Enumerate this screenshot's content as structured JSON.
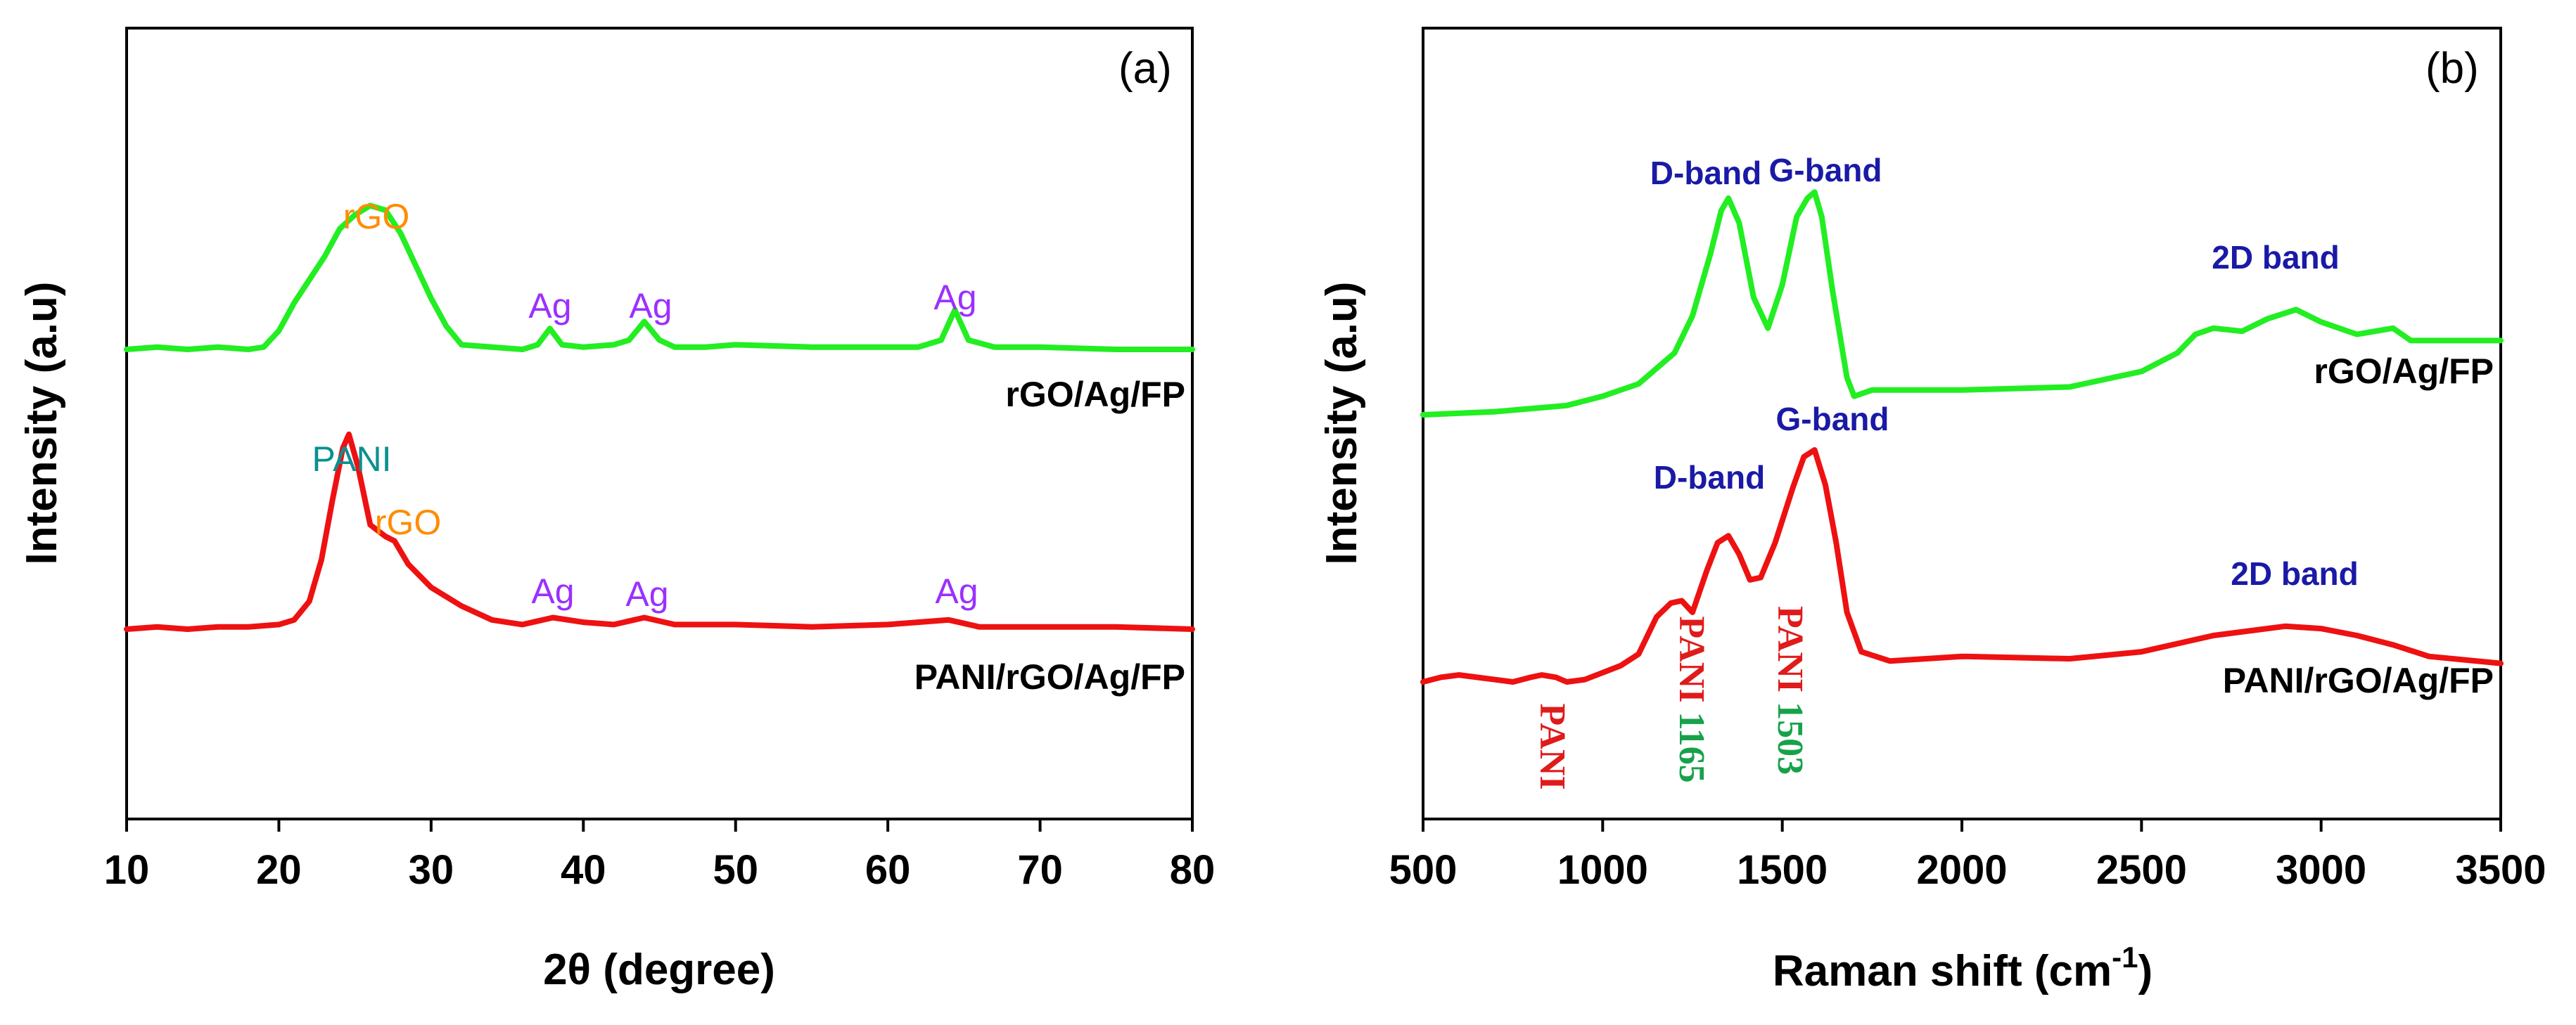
{
  "chart_data": [
    {
      "type": "line",
      "panel_label": "(a)",
      "xlabel": "2θ (degree)",
      "ylabel": "Intensity (a.u)",
      "xlim": [
        10,
        80
      ],
      "xticks": [
        10,
        20,
        30,
        40,
        50,
        60,
        70,
        80
      ],
      "yticks_shown": false,
      "series": [
        {
          "name": "rGO/Ag/FP",
          "color": "#22ee22",
          "x": [
            10,
            12,
            14,
            16,
            18,
            19,
            20,
            21,
            22,
            23,
            24,
            25,
            26,
            27,
            28,
            29,
            30,
            31,
            32,
            34,
            36,
            37,
            37.8,
            38.6,
            40,
            42,
            43,
            44,
            45,
            46,
            48,
            50,
            55,
            60,
            62,
            63.5,
            64.4,
            65.3,
            67,
            70,
            75,
            80
          ],
          "y": [
            0.0,
            0.01,
            0.0,
            0.01,
            0.0,
            0.01,
            0.08,
            0.2,
            0.3,
            0.4,
            0.52,
            0.58,
            0.62,
            0.6,
            0.5,
            0.36,
            0.22,
            0.1,
            0.02,
            0.01,
            0.0,
            0.02,
            0.09,
            0.02,
            0.01,
            0.02,
            0.04,
            0.12,
            0.04,
            0.01,
            0.01,
            0.02,
            0.01,
            0.01,
            0.01,
            0.04,
            0.17,
            0.04,
            0.01,
            0.01,
            0.0,
            0.0
          ]
        },
        {
          "name": "PANI/rGO/Ag/FP",
          "color": "#ee1111",
          "x": [
            10,
            12,
            14,
            16,
            18,
            20,
            21,
            22,
            22.8,
            23.5,
            24.2,
            24.6,
            25.2,
            26,
            27,
            27.6,
            28.5,
            30,
            32,
            34,
            36,
            38,
            40,
            42,
            44,
            46,
            50,
            55,
            60,
            64,
            66,
            70,
            75,
            80
          ],
          "y": [
            0.0,
            0.01,
            0.0,
            0.01,
            0.01,
            0.02,
            0.04,
            0.12,
            0.3,
            0.55,
            0.78,
            0.84,
            0.7,
            0.45,
            0.4,
            0.38,
            0.28,
            0.18,
            0.1,
            0.04,
            0.02,
            0.05,
            0.03,
            0.02,
            0.05,
            0.02,
            0.02,
            0.01,
            0.02,
            0.04,
            0.01,
            0.01,
            0.01,
            0.0
          ]
        }
      ],
      "sample_labels": [
        "rGO/Ag/FP",
        "PANI/rGO/Ag/FP"
      ],
      "annotations": [
        {
          "text": "rGO",
          "color": "#ff8c00"
        },
        {
          "text": "Ag",
          "color": "#9b30ff"
        },
        {
          "text": "Ag",
          "color": "#9b30ff"
        },
        {
          "text": "Ag",
          "color": "#9b30ff"
        },
        {
          "text": "PANI",
          "color": "#0b9090"
        },
        {
          "text": "rGO",
          "color": "#ff8c00"
        },
        {
          "text": "Ag",
          "color": "#9b30ff"
        },
        {
          "text": "Ag",
          "color": "#9b30ff"
        },
        {
          "text": "Ag",
          "color": "#9b30ff"
        }
      ]
    },
    {
      "type": "line",
      "panel_label": "(b)",
      "xlabel": "Raman shift (cm",
      "xlabel_sup": "-1",
      "xlabel_end": ")",
      "ylabel": "Intensity (a.u)",
      "xlim": [
        500,
        3500
      ],
      "xticks": [
        500,
        1000,
        1500,
        2000,
        2500,
        3000,
        3500
      ],
      "yticks_shown": false,
      "series": [
        {
          "name": "rGO/Ag/FP",
          "color": "#22ee22",
          "x": [
            500,
            700,
            900,
            1000,
            1100,
            1200,
            1250,
            1300,
            1330,
            1350,
            1380,
            1420,
            1460,
            1500,
            1540,
            1570,
            1590,
            1610,
            1640,
            1680,
            1700,
            1750,
            2000,
            2300,
            2500,
            2600,
            2650,
            2700,
            2780,
            2850,
            2930,
            3000,
            3100,
            3200,
            3250,
            3300,
            3500
          ],
          "y": [
            0.0,
            0.01,
            0.03,
            0.06,
            0.1,
            0.2,
            0.32,
            0.52,
            0.66,
            0.7,
            0.62,
            0.38,
            0.28,
            0.42,
            0.64,
            0.7,
            0.72,
            0.64,
            0.4,
            0.12,
            0.06,
            0.08,
            0.08,
            0.09,
            0.14,
            0.2,
            0.26,
            0.28,
            0.27,
            0.31,
            0.34,
            0.3,
            0.26,
            0.28,
            0.24,
            0.24,
            0.24
          ]
        },
        {
          "name": "PANI/rGO/Ag/FP",
          "color": "#ee1111",
          "x": [
            500,
            550,
            600,
            650,
            700,
            750,
            800,
            830,
            870,
            900,
            950,
            1000,
            1050,
            1100,
            1150,
            1190,
            1220,
            1250,
            1290,
            1320,
            1350,
            1380,
            1410,
            1440,
            1480,
            1530,
            1560,
            1590,
            1620,
            1650,
            1680,
            1720,
            1800,
            2000,
            2300,
            2500,
            2700,
            2900,
            3000,
            3100,
            3200,
            3300,
            3500
          ],
          "y": [
            0.0,
            0.02,
            0.03,
            0.02,
            0.01,
            0.0,
            0.02,
            0.03,
            0.02,
            0.0,
            0.01,
            0.04,
            0.07,
            0.12,
            0.28,
            0.34,
            0.35,
            0.3,
            0.48,
            0.6,
            0.63,
            0.55,
            0.44,
            0.45,
            0.6,
            0.84,
            0.97,
            1.0,
            0.85,
            0.6,
            0.3,
            0.13,
            0.09,
            0.11,
            0.1,
            0.13,
            0.2,
            0.24,
            0.23,
            0.2,
            0.16,
            0.11,
            0.08
          ]
        }
      ],
      "sample_labels": [
        "rGO/Ag/FP",
        "PANI/rGO/Ag/FP"
      ],
      "annotations": [
        {
          "text": "D-band",
          "color": "#1a1aa6"
        },
        {
          "text": "G-band",
          "color": "#1a1aa6"
        },
        {
          "text": "2D band",
          "color": "#1a1aa6"
        },
        {
          "text": "D-band",
          "color": "#1a1aa6"
        },
        {
          "text": "G-band",
          "color": "#1a1aa6"
        },
        {
          "text": "2D band",
          "color": "#1a1aa6"
        },
        {
          "text": "PANI",
          "color": "#e01b1b"
        },
        {
          "text": "PANI 1165",
          "color": "#e01b1b",
          "second_color": "#17a24a"
        },
        {
          "text": "PANI 1503",
          "color": "#e01b1b",
          "second_color": "#17a24a"
        }
      ]
    }
  ]
}
